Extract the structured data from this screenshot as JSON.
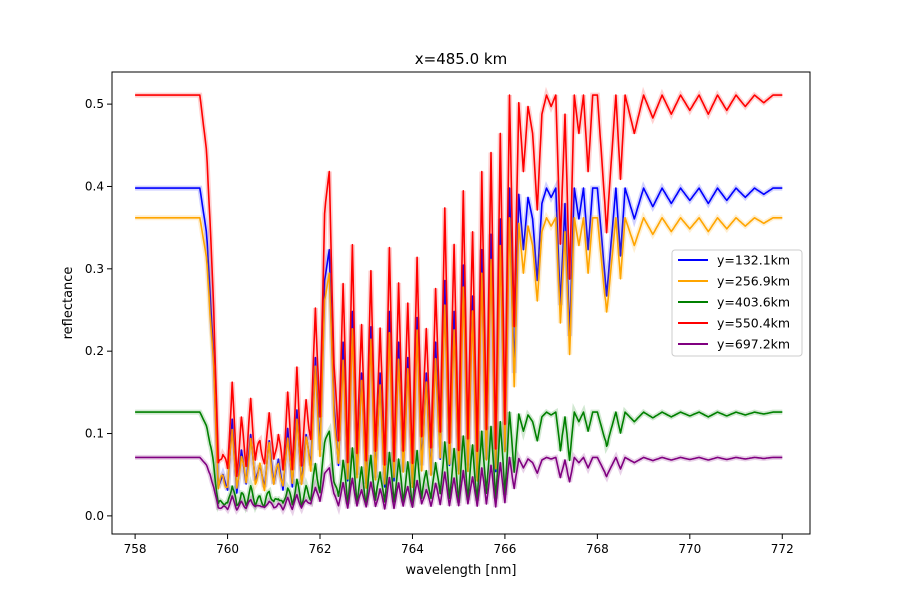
{
  "chart_data": {
    "type": "line",
    "title": "x=485.0 km",
    "xlabel": "wavelength [nm]",
    "ylabel": "reflectance",
    "xlim": [
      757.5,
      772.6
    ],
    "ylim": [
      -0.022,
      0.539
    ],
    "xticks": [
      758,
      760,
      762,
      764,
      766,
      768,
      770,
      772
    ],
    "yticks": [
      0.0,
      0.1,
      0.2,
      0.3,
      0.4,
      0.5
    ],
    "ytick_labels": [
      "0.0",
      "0.1",
      "0.2",
      "0.3",
      "0.4",
      "0.5"
    ],
    "grid": false,
    "legend_position": "center-right",
    "band_x": [
      758.0,
      758.5,
      759.0,
      759.4,
      759.55,
      759.7,
      759.8,
      759.9,
      760.0,
      760.1,
      760.2,
      760.3,
      760.4,
      760.5,
      760.6,
      760.7,
      760.8,
      760.9,
      761.0,
      761.1,
      761.2,
      761.3,
      761.4,
      761.5,
      761.6,
      761.7,
      761.8,
      761.9,
      762.0,
      762.1,
      762.2,
      762.3,
      762.4,
      762.5,
      762.6,
      762.7,
      762.8,
      762.9,
      763.0,
      763.1,
      763.2,
      763.3,
      763.4,
      763.5,
      763.6,
      763.7,
      763.8,
      763.9,
      764.0,
      764.1,
      764.2,
      764.3,
      764.4,
      764.5,
      764.6,
      764.7,
      764.8,
      764.9,
      765.0,
      765.1,
      765.2,
      765.3,
      765.4,
      765.5,
      765.6,
      765.7,
      765.8,
      765.9,
      766.0,
      766.1,
      766.2,
      766.3,
      766.4,
      766.5,
      766.6,
      766.7,
      766.8,
      766.9,
      767.0,
      767.1,
      767.2,
      767.3,
      767.4,
      767.5,
      767.6,
      767.7,
      767.8,
      767.9,
      768.0,
      768.2,
      768.4,
      768.5,
      768.6,
      768.8,
      769.0,
      769.2,
      769.4,
      769.6,
      769.8,
      770.0,
      770.2,
      770.4,
      770.6,
      770.8,
      771.0,
      771.2,
      771.4,
      771.6,
      771.8,
      772.0
    ],
    "band_depth": [
      0.0,
      0.0,
      0.0,
      0.0,
      0.15,
      0.55,
      0.97,
      0.93,
      0.98,
      0.75,
      0.99,
      0.85,
      0.96,
      0.8,
      0.95,
      0.9,
      0.97,
      0.82,
      0.96,
      0.88,
      0.98,
      0.78,
      0.97,
      0.72,
      0.96,
      0.8,
      0.9,
      0.55,
      0.85,
      0.3,
      0.2,
      0.7,
      0.9,
      0.5,
      0.95,
      0.4,
      0.93,
      0.6,
      0.96,
      0.45,
      0.94,
      0.6,
      0.97,
      0.4,
      0.95,
      0.5,
      0.92,
      0.55,
      0.96,
      0.42,
      0.9,
      0.6,
      0.93,
      0.5,
      0.88,
      0.3,
      0.9,
      0.4,
      0.92,
      0.25,
      0.9,
      0.35,
      0.94,
      0.2,
      0.88,
      0.15,
      0.92,
      0.1,
      0.85,
      0.0,
      0.6,
      0.02,
      0.2,
      0.03,
      0.1,
      0.3,
      0.05,
      0.0,
      0.03,
      0.0,
      0.38,
      0.05,
      0.48,
      0.0,
      0.1,
      0.0,
      0.2,
      0.0,
      0.0,
      0.35,
      0.0,
      0.22,
      0.0,
      0.1,
      0.0,
      0.06,
      0.0,
      0.05,
      0.0,
      0.04,
      0.0,
      0.05,
      0.0,
      0.04,
      0.0,
      0.03,
      0.0,
      0.02,
      0.0,
      0.0
    ],
    "band_min_fraction": [
      0.06,
      0.07,
      0.08,
      0.09,
      0.1
    ],
    "band_jitter": [
      0.0,
      0.015,
      0.03,
      0.01,
      0.02
    ],
    "series": [
      {
        "name": "y=132.1km",
        "color": "#0000ff",
        "baseline": 0.398
      },
      {
        "name": "y=256.9km",
        "color": "#ffa500",
        "baseline": 0.362
      },
      {
        "name": "y=403.6km",
        "color": "#008000",
        "baseline": 0.126
      },
      {
        "name": "y=550.4km",
        "color": "#ff0000",
        "baseline": 0.511
      },
      {
        "name": "y=697.2km",
        "color": "#800080",
        "baseline": 0.071
      }
    ]
  }
}
